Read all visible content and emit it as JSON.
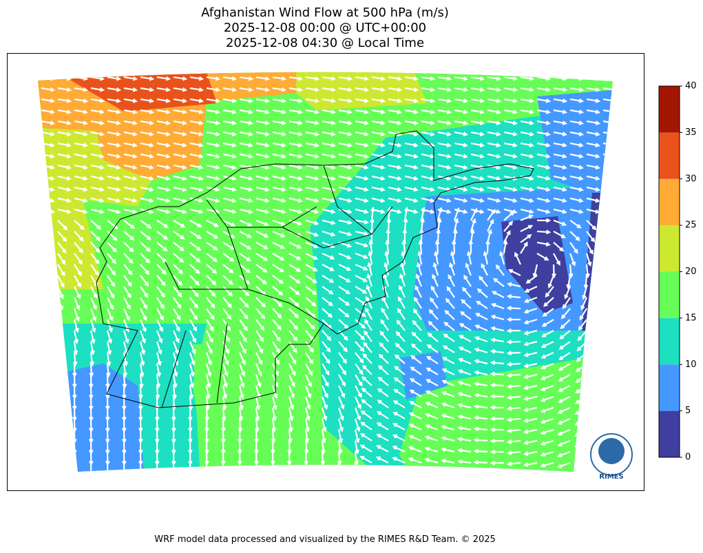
{
  "title": [
    "Afghanistan Wind Flow at 500 hPa (m/s)",
    "2025-12-08 00:00 @ UTC+00:00",
    "2025-12-08 04:30 @ Local Time"
  ],
  "colorbar": {
    "levels": [
      0,
      5,
      10,
      15,
      20,
      25,
      30,
      35,
      40
    ],
    "colors": [
      "#3e3f9e",
      "#4598ff",
      "#1ddfc1",
      "#67fd57",
      "#cde831",
      "#ffab35",
      "#e9521a",
      "#a31601"
    ]
  },
  "logo": {
    "text": "RIMES"
  },
  "footer": "WRF model data processed and visualized by the RIMES R&D Team. © 2025"
}
